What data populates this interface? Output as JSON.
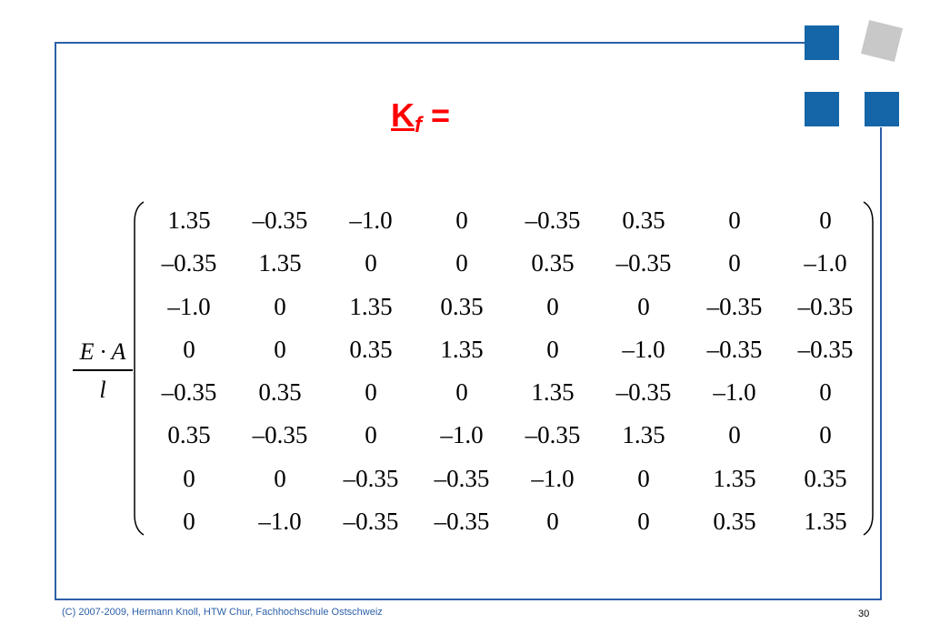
{
  "title": {
    "main": "K",
    "subscript": "f",
    "equals": " ="
  },
  "factor": {
    "numerator": "E · A",
    "denominator": "l"
  },
  "matrix": {
    "rows": [
      [
        "1.35",
        "–0.35",
        "–1.0",
        "0",
        "–0.35",
        "0.35",
        "0",
        "0"
      ],
      [
        "–0.35",
        "1.35",
        "0",
        "0",
        "0.35",
        "–0.35",
        "0",
        "–1.0"
      ],
      [
        "–1.0",
        "0",
        "1.35",
        "0.35",
        "0",
        "0",
        "–0.35",
        "–0.35"
      ],
      [
        "0",
        "0",
        "0.35",
        "1.35",
        "0",
        "–1.0",
        "–0.35",
        "–0.35"
      ],
      [
        "–0.35",
        "0.35",
        "0",
        "0",
        "1.35",
        "–0.35",
        "–1.0",
        "0"
      ],
      [
        "0.35",
        "–0.35",
        "0",
        "–1.0",
        "–0.35",
        "1.35",
        "0",
        "0"
      ],
      [
        "0",
        "0",
        "–0.35",
        "–0.35",
        "–1.0",
        "0",
        "1.35",
        "0.35"
      ],
      [
        "0",
        "–1.0",
        "–0.35",
        "–0.35",
        "0",
        "0",
        "0.35",
        "1.35"
      ]
    ]
  },
  "footer": {
    "copyright": "(C) 2007-2009, Hermann Knoll, HTW Chur, Fachhochschule Ostschweiz",
    "page_number": "30"
  },
  "colors": {
    "accent": "#1466a8",
    "frame": "#2c5fa8",
    "title": "#ff0000",
    "decor_gray": "#c8c8c8"
  }
}
